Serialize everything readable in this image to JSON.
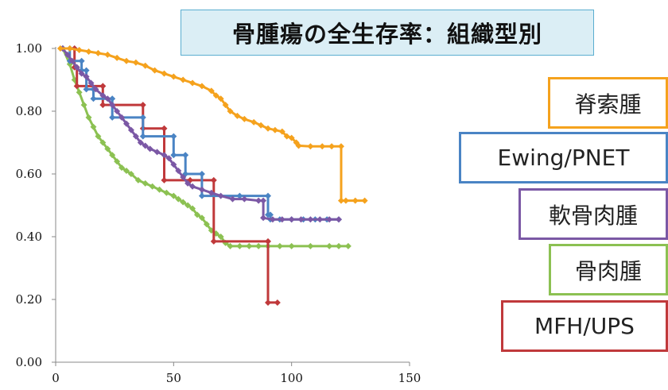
{
  "title": "骨腫瘍の全生存率：組織型別",
  "chart_data": {
    "type": "line",
    "step": true,
    "xlim": [
      0,
      150
    ],
    "ylim": [
      0,
      1
    ],
    "xticks": [
      "0",
      "50",
      "100",
      "150"
    ],
    "yticks": [
      "0.00",
      "0.20",
      "0.40",
      "0.60",
      "0.80",
      "1.00"
    ],
    "legend_position": "right",
    "series": [
      {
        "name": "脊索腫",
        "color": "#f5a21d",
        "points": [
          [
            2,
            1.0
          ],
          [
            6,
            1.0
          ],
          [
            10,
            0.995
          ],
          [
            14,
            0.99
          ],
          [
            18,
            0.985
          ],
          [
            22,
            0.98
          ],
          [
            26,
            0.97
          ],
          [
            30,
            0.96
          ],
          [
            34,
            0.955
          ],
          [
            38,
            0.945
          ],
          [
            42,
            0.93
          ],
          [
            46,
            0.92
          ],
          [
            50,
            0.91
          ],
          [
            54,
            0.9
          ],
          [
            58,
            0.89
          ],
          [
            62,
            0.88
          ],
          [
            66,
            0.865
          ],
          [
            68,
            0.85
          ],
          [
            70,
            0.84
          ],
          [
            72,
            0.82
          ],
          [
            74,
            0.8
          ],
          [
            77,
            0.785
          ],
          [
            80,
            0.775
          ],
          [
            84,
            0.765
          ],
          [
            87,
            0.755
          ],
          [
            90,
            0.745
          ],
          [
            93,
            0.74
          ],
          [
            96,
            0.735
          ],
          [
            98,
            0.72
          ],
          [
            100,
            0.715
          ],
          [
            102,
            0.7
          ],
          [
            103,
            0.69
          ],
          [
            108,
            0.688
          ],
          [
            113,
            0.688
          ],
          [
            117,
            0.688
          ],
          [
            121,
            0.688
          ],
          [
            121,
            0.515
          ],
          [
            123,
            0.515
          ],
          [
            127,
            0.515
          ],
          [
            131,
            0.515
          ]
        ]
      },
      {
        "name": "Ewing/PNET",
        "color": "#4a84c4",
        "points": [
          [
            3,
            1.0
          ],
          [
            6,
            1.0
          ],
          [
            6,
            0.96
          ],
          [
            11,
            0.96
          ],
          [
            11,
            0.93
          ],
          [
            13,
            0.93
          ],
          [
            13,
            0.87
          ],
          [
            16,
            0.87
          ],
          [
            16,
            0.84
          ],
          [
            24,
            0.84
          ],
          [
            24,
            0.78
          ],
          [
            37,
            0.78
          ],
          [
            37,
            0.72
          ],
          [
            50,
            0.72
          ],
          [
            50,
            0.66
          ],
          [
            55,
            0.66
          ],
          [
            55,
            0.6
          ],
          [
            62,
            0.6
          ],
          [
            62,
            0.53
          ],
          [
            78,
            0.53
          ],
          [
            90,
            0.53
          ],
          [
            90,
            0.47
          ],
          [
            91,
            0.47
          ],
          [
            91,
            0.455
          ],
          [
            95,
            0.455
          ],
          [
            100,
            0.455
          ],
          [
            105,
            0.455
          ],
          [
            110,
            0.455
          ],
          [
            115,
            0.455
          ],
          [
            120,
            0.455
          ]
        ]
      },
      {
        "name": "軟骨肉腫",
        "color": "#7b58a5",
        "points": [
          [
            3,
            1.0
          ],
          [
            5,
            0.98
          ],
          [
            7,
            0.96
          ],
          [
            9,
            0.94
          ],
          [
            11,
            0.92
          ],
          [
            13,
            0.91
          ],
          [
            15,
            0.89
          ],
          [
            17,
            0.87
          ],
          [
            20,
            0.85
          ],
          [
            22,
            0.84
          ],
          [
            24,
            0.82
          ],
          [
            26,
            0.8
          ],
          [
            28,
            0.78
          ],
          [
            30,
            0.76
          ],
          [
            32,
            0.74
          ],
          [
            34,
            0.72
          ],
          [
            36,
            0.7
          ],
          [
            38,
            0.69
          ],
          [
            40,
            0.68
          ],
          [
            43,
            0.67
          ],
          [
            46,
            0.66
          ],
          [
            48,
            0.65
          ],
          [
            50,
            0.63
          ],
          [
            52,
            0.61
          ],
          [
            54,
            0.59
          ],
          [
            56,
            0.57
          ],
          [
            58,
            0.56
          ],
          [
            62,
            0.55
          ],
          [
            66,
            0.54
          ],
          [
            70,
            0.53
          ],
          [
            75,
            0.52
          ],
          [
            80,
            0.52
          ],
          [
            86,
            0.515
          ],
          [
            88,
            0.515
          ],
          [
            88,
            0.46
          ],
          [
            92,
            0.455
          ],
          [
            96,
            0.455
          ],
          [
            100,
            0.455
          ],
          [
            104,
            0.455
          ],
          [
            108,
            0.455
          ],
          [
            112,
            0.455
          ],
          [
            116,
            0.455
          ],
          [
            120,
            0.455
          ]
        ]
      },
      {
        "name": "骨肉腫",
        "color": "#8cc152",
        "points": [
          [
            3,
            1.0
          ],
          [
            6,
            0.95
          ],
          [
            8,
            0.9
          ],
          [
            10,
            0.86
          ],
          [
            12,
            0.82
          ],
          [
            14,
            0.78
          ],
          [
            16,
            0.75
          ],
          [
            18,
            0.72
          ],
          [
            20,
            0.7
          ],
          [
            22,
            0.68
          ],
          [
            24,
            0.66
          ],
          [
            26,
            0.64
          ],
          [
            28,
            0.62
          ],
          [
            30,
            0.61
          ],
          [
            32,
            0.6
          ],
          [
            35,
            0.58
          ],
          [
            38,
            0.57
          ],
          [
            41,
            0.56
          ],
          [
            44,
            0.55
          ],
          [
            47,
            0.54
          ],
          [
            50,
            0.53
          ],
          [
            52,
            0.52
          ],
          [
            54,
            0.51
          ],
          [
            56,
            0.5
          ],
          [
            58,
            0.49
          ],
          [
            60,
            0.47
          ],
          [
            62,
            0.46
          ],
          [
            64,
            0.44
          ],
          [
            66,
            0.42
          ],
          [
            68,
            0.41
          ],
          [
            70,
            0.4
          ],
          [
            72,
            0.38
          ],
          [
            74,
            0.37
          ],
          [
            78,
            0.37
          ],
          [
            82,
            0.37
          ],
          [
            86,
            0.37
          ],
          [
            90,
            0.37
          ],
          [
            95,
            0.37
          ],
          [
            100,
            0.37
          ],
          [
            108,
            0.37
          ],
          [
            116,
            0.37
          ],
          [
            120,
            0.37
          ],
          [
            124,
            0.37
          ]
        ]
      },
      {
        "name": "MFH/UPS",
        "color": "#c0393b",
        "points": [
          [
            3,
            1.0
          ],
          [
            8,
            1.0
          ],
          [
            8,
            0.94
          ],
          [
            9,
            0.94
          ],
          [
            9,
            0.88
          ],
          [
            20,
            0.88
          ],
          [
            20,
            0.82
          ],
          [
            37,
            0.82
          ],
          [
            37,
            0.745
          ],
          [
            46,
            0.745
          ],
          [
            46,
            0.58
          ],
          [
            57,
            0.58
          ],
          [
            67,
            0.58
          ],
          [
            67,
            0.385
          ],
          [
            90,
            0.385
          ],
          [
            90,
            0.19
          ],
          [
            94,
            0.19
          ]
        ]
      }
    ]
  }
}
